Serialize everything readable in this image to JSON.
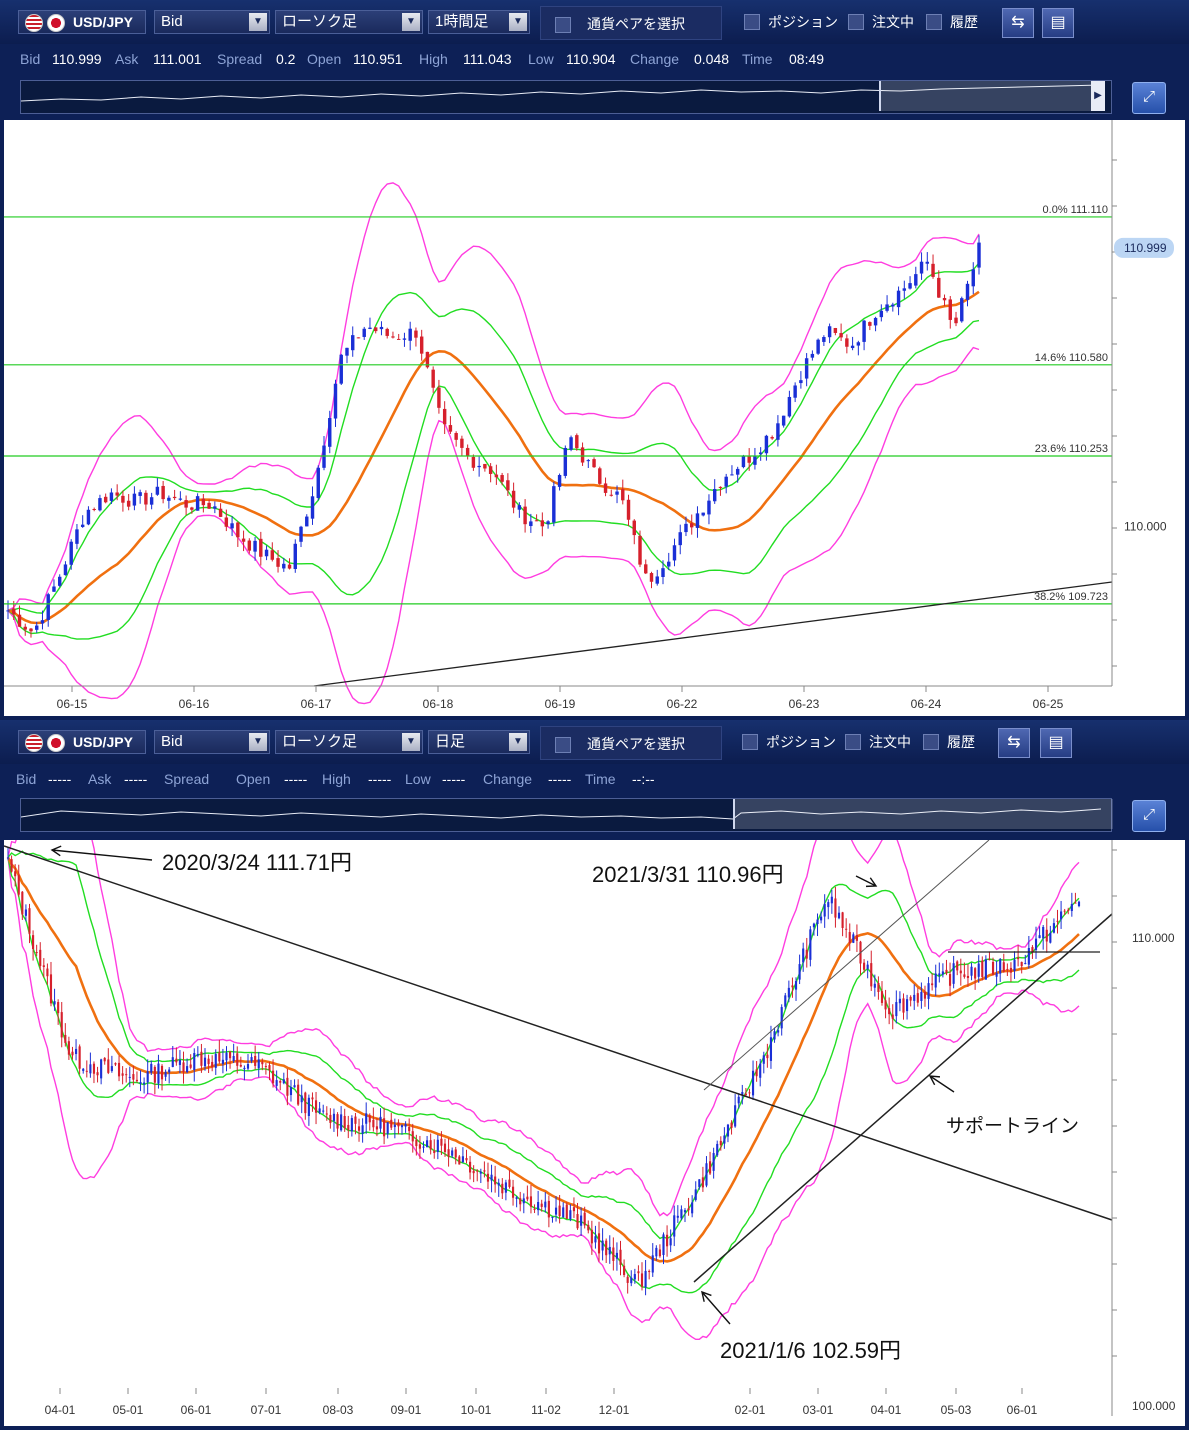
{
  "top": {
    "toolbar": {
      "pair": "USD/JPY",
      "price_type": "Bid",
      "chart_type": "ローソク足",
      "timeframe": "1時間足",
      "pair_select": "通貨ペアを選択",
      "checkbox_position": "ポジション",
      "checkbox_orders": "注文中",
      "checkbox_history": "履歴"
    },
    "quote": {
      "bid_label": "Bid",
      "bid": "110.999",
      "ask_label": "Ask",
      "ask": "111.001",
      "spread_label": "Spread",
      "spread": "0.2",
      "open_label": "Open",
      "open": "110.951",
      "high_label": "High",
      "high": "111.043",
      "low_label": "Low",
      "low": "110.904",
      "change_label": "Change",
      "change": "0.048",
      "time_label": "Time",
      "time": "08:49"
    }
  },
  "bottom": {
    "toolbar": {
      "pair": "USD/JPY",
      "price_type": "Bid",
      "chart_type": "ローソク足",
      "timeframe": "日足",
      "pair_select": "通貨ペアを選択",
      "checkbox_position": "ポジション",
      "checkbox_orders": "注文中",
      "checkbox_history": "履歴"
    },
    "quote": {
      "bid_label": "Bid",
      "bid": "-----",
      "ask_label": "Ask",
      "ask": "-----",
      "spread_label": "Spread",
      "spread": "",
      "open_label": "Open",
      "open": "-----",
      "high_label": "High",
      "high": "-----",
      "low_label": "Low",
      "low": "-----",
      "change_label": "Change",
      "change": "-----",
      "time_label": "Time",
      "time": "--:--"
    }
  },
  "colors": {
    "bull": "#1a2fd6",
    "bear": "#d6202c",
    "bollinger_outer": "#ff3de0",
    "bollinger_inner": "#22dd22",
    "moving_average": "#f07010",
    "fib_line": "#22cc22",
    "trend_line": "#222222",
    "panel": "#0d2056",
    "current_price_tag": "#bcd6f4"
  },
  "chart_data": [
    {
      "type": "line",
      "subtype": "candlestick",
      "instrument": "USD/JPY",
      "timeframe": "1時間足",
      "x_ticks": [
        "06-15",
        "06-16",
        "06-17",
        "06-18",
        "06-19",
        "06-22",
        "06-23",
        "06-24",
        "06-25"
      ],
      "y_ticks": [
        "110.000"
      ],
      "current_price": "110.999",
      "ylim": [
        109.45,
        111.35
      ],
      "close_path": [
        {
          "d": "06-15 00:00",
          "v": 109.7
        },
        {
          "d": "06-15 04:00",
          "v": 109.62
        },
        {
          "d": "06-15 07:00",
          "v": 109.82
        },
        {
          "d": "06-15 10:00",
          "v": 110.05
        },
        {
          "d": "06-15 14:00",
          "v": 110.12
        },
        {
          "d": "06-15 20:00",
          "v": 110.09
        },
        {
          "d": "06-16 00:00",
          "v": 110.12
        },
        {
          "d": "06-16 06:00",
          "v": 110.08
        },
        {
          "d": "06-16 12:00",
          "v": 110.08
        },
        {
          "d": "06-16 16:00",
          "v": 109.97
        },
        {
          "d": "06-16 20:00",
          "v": 109.9
        },
        {
          "d": "06-17 00:00",
          "v": 109.85
        },
        {
          "d": "06-17 01:00",
          "v": 110.15
        },
        {
          "d": "06-17 03:00",
          "v": 110.6
        },
        {
          "d": "06-17 08:00",
          "v": 110.72
        },
        {
          "d": "06-17 14:00",
          "v": 110.68
        },
        {
          "d": "06-17 20:00",
          "v": 110.7
        },
        {
          "d": "06-18 00:00",
          "v": 110.35
        },
        {
          "d": "06-18 04:00",
          "v": 110.25
        },
        {
          "d": "06-18 10:00",
          "v": 110.2
        },
        {
          "d": "06-18 16:00",
          "v": 110.05
        },
        {
          "d": "06-18 20:00",
          "v": 110.0
        },
        {
          "d": "06-19 00:00",
          "v": 110.32
        },
        {
          "d": "06-19 06:00",
          "v": 110.18
        },
        {
          "d": "06-19 12:00",
          "v": 110.1
        },
        {
          "d": "06-19 14:00",
          "v": 109.8
        },
        {
          "d": "06-19 20:00",
          "v": 109.92
        },
        {
          "d": "06-22 00:00",
          "v": 110.05
        },
        {
          "d": "06-22 06:00",
          "v": 110.18
        },
        {
          "d": "06-22 12:00",
          "v": 110.25
        },
        {
          "d": "06-22 18:00",
          "v": 110.35
        },
        {
          "d": "06-23 00:00",
          "v": 110.55
        },
        {
          "d": "06-23 06:00",
          "v": 110.7
        },
        {
          "d": "06-23 12:00",
          "v": 110.65
        },
        {
          "d": "06-23 18:00",
          "v": 110.78
        },
        {
          "d": "06-23 22:00",
          "v": 110.85
        },
        {
          "d": "06-24 00:00",
          "v": 110.95
        },
        {
          "d": "06-24 04:00",
          "v": 110.7
        },
        {
          "d": "06-24 08:00",
          "v": 110.99
        }
      ],
      "fibonacci": [
        {
          "label": "0.0%",
          "price": "111.110"
        },
        {
          "label": "14.6%",
          "price": "110.580"
        },
        {
          "label": "23.6%",
          "price": "110.253"
        },
        {
          "label": "38.2%",
          "price": "109.723"
        }
      ],
      "indicators": [
        "ボリンジャーバンド ±1σ/±2σ",
        "移動平均線"
      ]
    },
    {
      "type": "line",
      "subtype": "candlestick",
      "instrument": "USD/JPY",
      "timeframe": "日足",
      "x_ticks": [
        "04-01",
        "05-01",
        "06-01",
        "07-01",
        "08-03",
        "09-01",
        "10-01",
        "11-02",
        "12-01",
        "02-01",
        "03-01",
        "04-01",
        "05-03",
        "06-01"
      ],
      "y_ticks": [
        "110.000",
        "100.000"
      ],
      "ylim": [
        100.0,
        111.8
      ],
      "close_path": [
        {
          "d": "2020-03-24",
          "v": 111.71
        },
        {
          "d": "2020-04-01",
          "v": 107.5
        },
        {
          "d": "2020-05-01",
          "v": 107.0
        },
        {
          "d": "2020-06-01",
          "v": 107.5
        },
        {
          "d": "2020-07-01",
          "v": 107.3
        },
        {
          "d": "2020-08-03",
          "v": 106.2
        },
        {
          "d": "2020-09-01",
          "v": 106.0
        },
        {
          "d": "2020-10-01",
          "v": 105.5
        },
        {
          "d": "2020-11-02",
          "v": 104.6
        },
        {
          "d": "2020-12-01",
          "v": 104.0
        },
        {
          "d": "2021-01-06",
          "v": 102.59
        },
        {
          "d": "2021-02-01",
          "v": 104.8
        },
        {
          "d": "2021-03-01",
          "v": 107.5
        },
        {
          "d": "2021-03-31",
          "v": 110.96
        },
        {
          "d": "2021-04-20",
          "v": 108.5
        },
        {
          "d": "2021-05-03",
          "v": 109.3
        },
        {
          "d": "2021-06-01",
          "v": 109.5
        },
        {
          "d": "2021-06-24",
          "v": 110.9
        }
      ],
      "annotations": [
        {
          "text": "2020/3/24  111.71円"
        },
        {
          "text": "2021/3/31  110.96円"
        },
        {
          "text": "2021/1/6  102.59円"
        },
        {
          "text": "サポートライン"
        }
      ],
      "indicators": [
        "ボリンジャーバンド ±1σ/±2σ",
        "移動平均線"
      ]
    }
  ]
}
